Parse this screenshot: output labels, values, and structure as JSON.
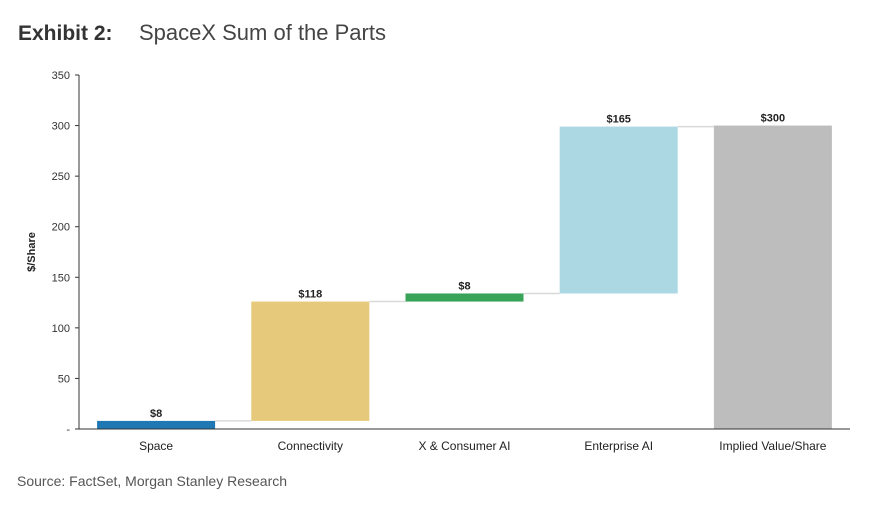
{
  "header": {
    "exhibit": "Exhibit 2:",
    "title": "SpaceX Sum of the Parts"
  },
  "source": "Source: FactSet, Morgan Stanley Research",
  "chart_data": {
    "type": "bar",
    "subtype": "waterfall",
    "ylabel": "$/Share",
    "xlabel": "",
    "ylim": [
      0,
      350
    ],
    "yticks": [
      0,
      50,
      100,
      150,
      200,
      250,
      300,
      350
    ],
    "ytick_labels": [
      "-",
      "50",
      "100",
      "150",
      "200",
      "250",
      "300",
      "350"
    ],
    "grid": false,
    "categories": [
      "Space",
      "Connectivity",
      "X & Consumer AI",
      "Enterprise AI",
      "Implied Value/Share"
    ],
    "bars": [
      {
        "category": "Space",
        "start": 0,
        "end": 8,
        "label": "$8",
        "color": "#1f78b4"
      },
      {
        "category": "Connectivity",
        "start": 8,
        "end": 126,
        "label": "$118",
        "color": "#e6c97a"
      },
      {
        "category": "X & Consumer AI",
        "start": 126,
        "end": 134,
        "label": "$8",
        "color": "#3aa35a"
      },
      {
        "category": "Enterprise AI",
        "start": 134,
        "end": 299,
        "label": "$165",
        "color": "#abd8e3"
      },
      {
        "category": "Implied Value/Share",
        "start": 0,
        "end": 300,
        "label": "$300",
        "color": "#bdbdbd"
      }
    ],
    "connector_color": "#d9d9d9"
  }
}
